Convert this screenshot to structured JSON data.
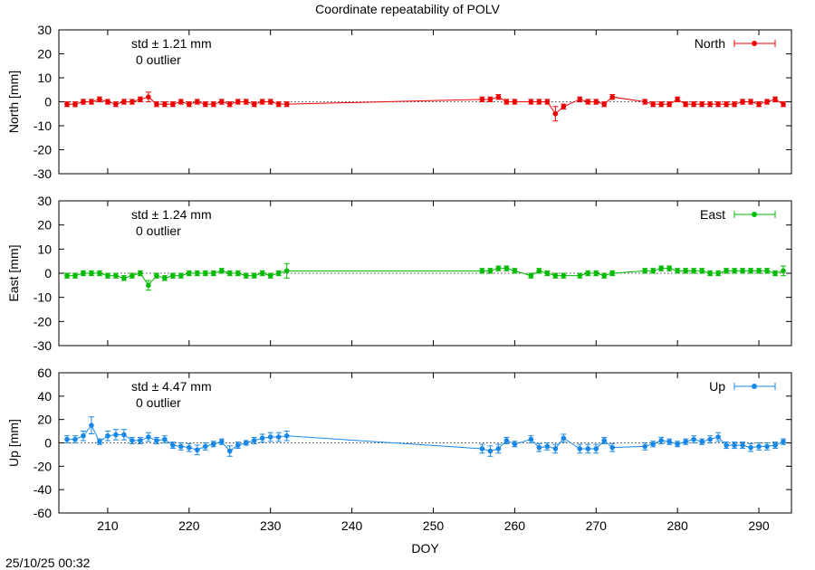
{
  "title": "Coordinate repeatability of POLV",
  "timestamp": "25/10/25 00:32",
  "chart_data": [
    {
      "type": "line",
      "component": "North",
      "ylabel": "North [mm]",
      "xlabel": "",
      "ylim": [
        -30,
        30
      ],
      "yticks": [
        -30,
        -20,
        -10,
        0,
        10,
        20,
        30
      ],
      "xlim": [
        204,
        294
      ],
      "xticks": [
        210,
        220,
        230,
        240,
        250,
        260,
        270,
        280,
        290
      ],
      "color": "#ee0000",
      "legend": "North",
      "std_text": "std ± 1.21 mm",
      "outlier_text": "0 outlier",
      "grid": false,
      "x": [
        205,
        206,
        207,
        208,
        209,
        210,
        211,
        212,
        213,
        214,
        215,
        216,
        217,
        218,
        219,
        220,
        221,
        222,
        223,
        224,
        225,
        226,
        227,
        228,
        229,
        230,
        231,
        232,
        256,
        257,
        258,
        259,
        260,
        262,
        263,
        264,
        265,
        266,
        268,
        269,
        270,
        271,
        272,
        276,
        277,
        278,
        279,
        280,
        281,
        282,
        283,
        284,
        285,
        286,
        287,
        288,
        289,
        290,
        291,
        292,
        293
      ],
      "y": [
        -1,
        -1,
        0,
        0,
        1,
        0,
        -1,
        0,
        0,
        1,
        2,
        -1,
        -1,
        -1,
        0,
        -1,
        0,
        -1,
        -1,
        0,
        -1,
        0,
        0,
        -1,
        0,
        0,
        -1,
        -1,
        1,
        1,
        2,
        0,
        0,
        0,
        0,
        0,
        -5,
        -2,
        1,
        0,
        0,
        -1,
        2,
        0,
        -1,
        -1,
        -1,
        1,
        -1,
        -1,
        -1,
        -1,
        -1,
        -1,
        -1,
        0,
        0,
        -1,
        0,
        1,
        -1
      ],
      "err": [
        1,
        1,
        1,
        1,
        1,
        1,
        1,
        1,
        1,
        1,
        2,
        1,
        1,
        1,
        1,
        1,
        1,
        1,
        1,
        1,
        1,
        1,
        1,
        1,
        1,
        1,
        1,
        1,
        1,
        1,
        1,
        1,
        1,
        1,
        1,
        1,
        3,
        1,
        1,
        1,
        1,
        1,
        1,
        1,
        1,
        1,
        1,
        1,
        1,
        1,
        1,
        1,
        1,
        1,
        1,
        1,
        1,
        1,
        1,
        1,
        1
      ]
    },
    {
      "type": "line",
      "component": "East",
      "ylabel": "East [mm]",
      "xlabel": "",
      "ylim": [
        -30,
        30
      ],
      "yticks": [
        -30,
        -20,
        -10,
        0,
        10,
        20,
        30
      ],
      "xlim": [
        204,
        294
      ],
      "xticks": [
        210,
        220,
        230,
        240,
        250,
        260,
        270,
        280,
        290
      ],
      "color": "#00bb00",
      "legend": "East",
      "std_text": "std ± 1.24 mm",
      "outlier_text": "0 outlier",
      "grid": false,
      "x": [
        205,
        206,
        207,
        208,
        209,
        210,
        211,
        212,
        213,
        214,
        215,
        216,
        217,
        218,
        219,
        220,
        221,
        222,
        223,
        224,
        225,
        226,
        227,
        228,
        229,
        230,
        231,
        232,
        256,
        257,
        258,
        259,
        260,
        262,
        263,
        264,
        265,
        266,
        268,
        269,
        270,
        271,
        272,
        276,
        277,
        278,
        279,
        280,
        281,
        282,
        283,
        284,
        285,
        286,
        287,
        288,
        289,
        290,
        291,
        292,
        293
      ],
      "y": [
        -1,
        -1,
        0,
        0,
        0,
        -1,
        -1,
        -2,
        -1,
        0,
        -5,
        -1,
        -2,
        -1,
        -1,
        0,
        0,
        0,
        0,
        1,
        0,
        0,
        -1,
        -1,
        0,
        -1,
        0,
        1,
        1,
        1,
        2,
        2,
        1,
        -1,
        1,
        0,
        -1,
        -1,
        -1,
        0,
        0,
        -1,
        0,
        1,
        1,
        2,
        2,
        1,
        1,
        1,
        1,
        0,
        0,
        1,
        1,
        1,
        1,
        1,
        1,
        0,
        1
      ],
      "err": [
        1,
        1,
        1,
        1,
        1,
        1,
        1,
        1,
        1,
        1,
        2,
        1,
        1,
        1,
        1,
        1,
        1,
        1,
        1,
        1,
        1,
        1,
        1,
        1,
        1,
        1,
        1,
        3,
        1,
        1,
        1,
        1,
        1,
        1,
        1,
        1,
        1,
        1,
        1,
        1,
        1,
        1,
        1,
        1,
        1,
        1,
        1,
        1,
        1,
        1,
        1,
        1,
        1,
        1,
        1,
        1,
        1,
        1,
        1,
        1,
        2
      ]
    },
    {
      "type": "line",
      "component": "Up",
      "ylabel": "Up [mm]",
      "xlabel": "DOY",
      "ylim": [
        -60,
        60
      ],
      "yticks": [
        -60,
        -40,
        -20,
        0,
        20,
        40,
        60
      ],
      "xlim": [
        204,
        294
      ],
      "xticks": [
        210,
        220,
        230,
        240,
        250,
        260,
        270,
        280,
        290
      ],
      "color": "#1888e8",
      "legend": "Up",
      "std_text": "std ± 4.47 mm",
      "outlier_text": "0 outlier",
      "grid": false,
      "x": [
        205,
        206,
        207,
        208,
        209,
        210,
        211,
        212,
        213,
        214,
        215,
        216,
        217,
        218,
        219,
        220,
        221,
        222,
        223,
        224,
        225,
        226,
        227,
        228,
        229,
        230,
        231,
        232,
        256,
        257,
        258,
        259,
        260,
        262,
        263,
        264,
        265,
        266,
        268,
        269,
        270,
        271,
        272,
        276,
        277,
        278,
        279,
        280,
        281,
        282,
        283,
        284,
        285,
        286,
        287,
        288,
        289,
        290,
        291,
        292,
        293
      ],
      "y": [
        3,
        3,
        6,
        15,
        1,
        6,
        7,
        7,
        2,
        2,
        5,
        2,
        3,
        -2,
        -3,
        -4,
        -6,
        -3,
        -1,
        1,
        -7,
        -2,
        0,
        2,
        4,
        5,
        5,
        6,
        -5,
        -7,
        -5,
        2,
        -1,
        3,
        -4,
        -3,
        -5,
        4,
        -5,
        -5,
        -5,
        2,
        -4,
        -3,
        -1,
        2,
        1,
        -1,
        1,
        3,
        1,
        3,
        5,
        -2,
        -2,
        -2,
        -4,
        -3,
        -3,
        -2,
        1
      ]
    }
  ]
}
